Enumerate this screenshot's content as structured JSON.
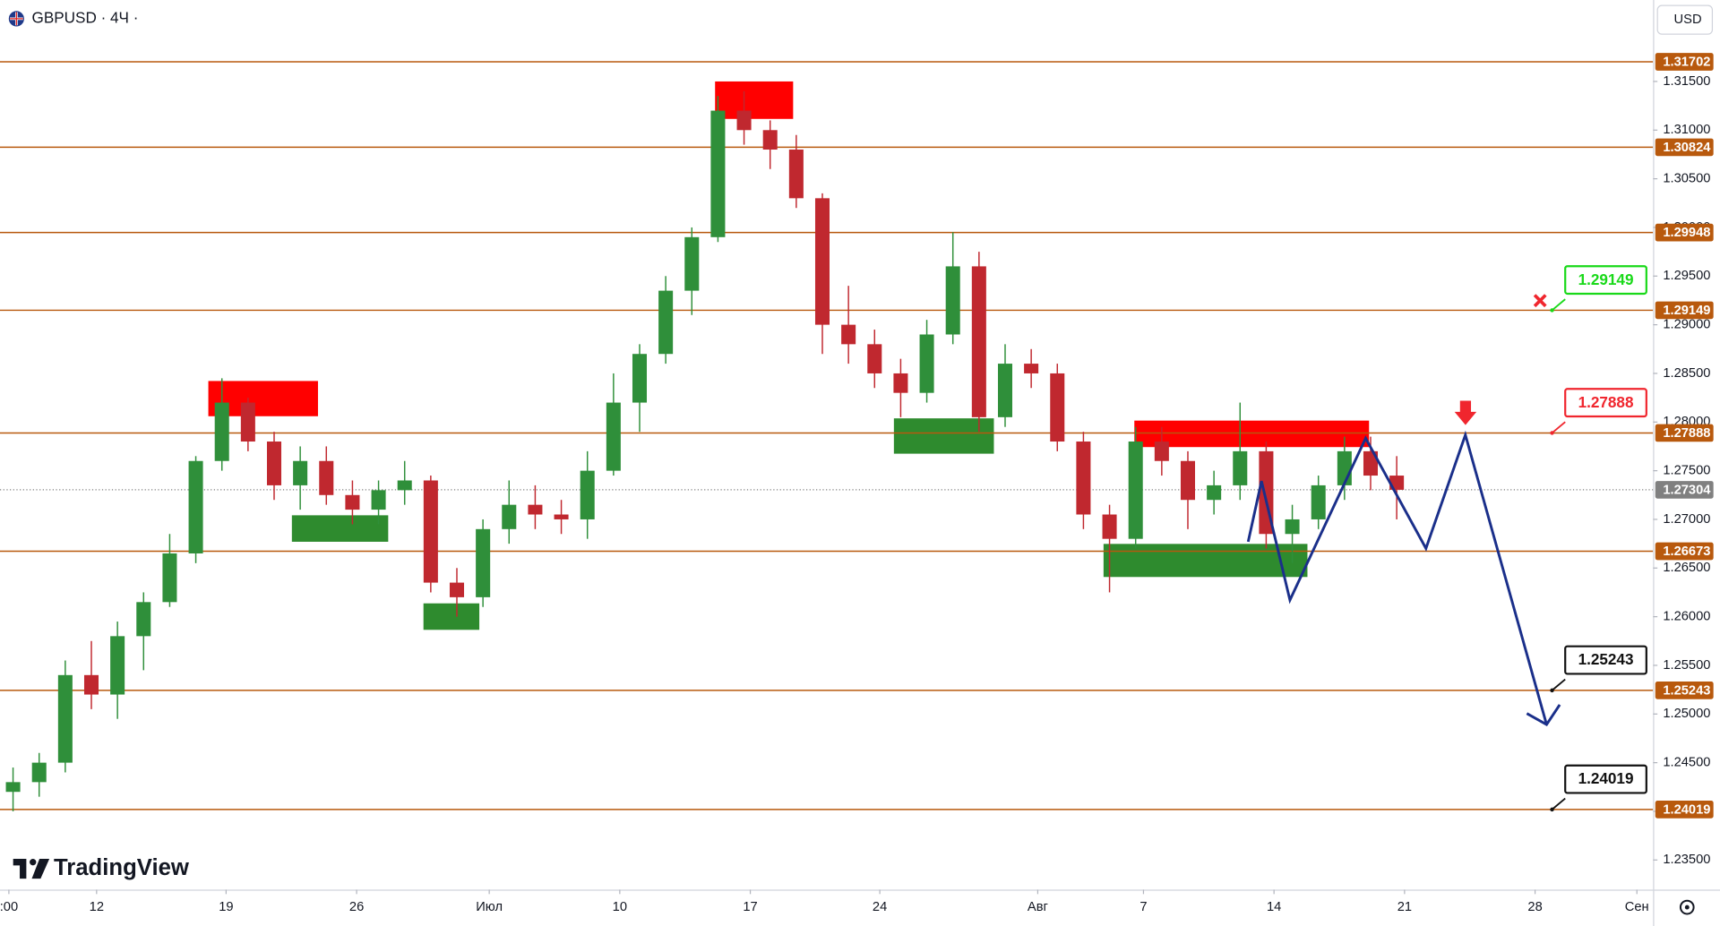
{
  "chart_data": {
    "type": "candlestick",
    "title": "GBPUSD · 4Ч ·",
    "currency": "USD",
    "brand": "TradingView",
    "up_color": "#2f8f3a",
    "down_color": "#c0282f",
    "x": [
      0,
      1,
      2,
      3,
      4,
      5,
      6,
      7,
      8,
      9,
      10,
      11,
      12,
      13,
      14,
      15,
      16,
      17,
      18,
      19,
      20,
      21,
      22,
      23,
      24,
      25,
      26,
      27,
      28,
      29,
      30,
      31,
      32,
      33,
      34,
      35,
      36,
      37,
      38,
      39,
      40,
      41,
      42,
      43,
      44,
      45,
      46,
      47,
      48,
      49,
      50,
      51,
      52,
      53
    ],
    "open": [
      1.242,
      1.243,
      1.245,
      1.254,
      1.252,
      1.258,
      1.2615,
      1.2665,
      1.276,
      1.282,
      1.278,
      1.2735,
      1.276,
      1.2725,
      1.271,
      1.273,
      1.274,
      1.2635,
      1.262,
      1.269,
      1.2715,
      1.2705,
      1.27,
      1.275,
      1.282,
      1.287,
      1.2935,
      1.299,
      1.312,
      1.31,
      1.308,
      1.303,
      1.29,
      1.288,
      1.285,
      1.283,
      1.289,
      1.296,
      1.2805,
      1.286,
      1.285,
      1.278,
      1.2705,
      1.268,
      1.278,
      1.276,
      1.272,
      1.2735,
      1.277,
      1.2685,
      1.27,
      1.2735,
      1.277,
      1.2745
    ],
    "high": [
      1.2445,
      1.246,
      1.2555,
      1.2575,
      1.2595,
      1.2625,
      1.2685,
      1.2765,
      1.2845,
      1.2825,
      1.279,
      1.2775,
      1.2775,
      1.274,
      1.274,
      1.276,
      1.2745,
      1.265,
      1.27,
      1.274,
      1.2735,
      1.272,
      1.277,
      1.285,
      1.288,
      1.295,
      1.3,
      1.3135,
      1.314,
      1.311,
      1.3095,
      1.3035,
      1.294,
      1.2895,
      1.2865,
      1.2905,
      1.2995,
      1.2975,
      1.288,
      1.2875,
      1.286,
      1.279,
      1.2715,
      1.2795,
      1.2795,
      1.277,
      1.275,
      1.282,
      1.278,
      1.2715,
      1.2745,
      1.2785,
      1.2785,
      1.2765
    ],
    "low": [
      1.24,
      1.2415,
      1.244,
      1.2505,
      1.2495,
      1.2545,
      1.261,
      1.2655,
      1.275,
      1.277,
      1.272,
      1.271,
      1.2715,
      1.2695,
      1.2695,
      1.2715,
      1.2625,
      1.26,
      1.261,
      1.2675,
      1.269,
      1.2685,
      1.268,
      1.2745,
      1.279,
      1.286,
      1.291,
      1.2985,
      1.3085,
      1.306,
      1.302,
      1.287,
      1.286,
      1.2835,
      1.2805,
      1.282,
      1.288,
      1.279,
      1.2795,
      1.2835,
      1.277,
      1.269,
      1.2625,
      1.267,
      1.2745,
      1.269,
      1.2705,
      1.272,
      1.267,
      1.2655,
      1.269,
      1.272,
      1.273,
      1.27
    ],
    "close": [
      1.243,
      1.245,
      1.254,
      1.252,
      1.258,
      1.2615,
      1.2665,
      1.276,
      1.282,
      1.278,
      1.2735,
      1.276,
      1.2725,
      1.271,
      1.273,
      1.274,
      1.2635,
      1.262,
      1.269,
      1.2715,
      1.2705,
      1.27,
      1.275,
      1.282,
      1.287,
      1.2935,
      1.299,
      1.312,
      1.31,
      1.308,
      1.303,
      1.29,
      1.288,
      1.285,
      1.283,
      1.289,
      1.296,
      1.2805,
      1.286,
      1.285,
      1.278,
      1.2705,
      1.268,
      1.278,
      1.276,
      1.272,
      1.2735,
      1.277,
      1.2685,
      1.27,
      1.2735,
      1.277,
      1.2745,
      1.27304
    ],
    "xlim": [
      -0.5,
      62.82
    ],
    "xticks": [
      {
        "value": -0.16,
        "label": ":00"
      },
      {
        "value": 3.2,
        "label": "12"
      },
      {
        "value": 8.16,
        "label": "19"
      },
      {
        "value": 13.16,
        "label": "26"
      },
      {
        "value": 18.24,
        "label": "Июл"
      },
      {
        "value": 23.24,
        "label": "10"
      },
      {
        "value": 28.24,
        "label": "17"
      },
      {
        "value": 33.2,
        "label": "24"
      },
      {
        "value": 39.25,
        "label": "Авг"
      },
      {
        "value": 43.3,
        "label": "7"
      },
      {
        "value": 48.3,
        "label": "14"
      },
      {
        "value": 53.3,
        "label": "21"
      },
      {
        "value": 58.3,
        "label": "28"
      },
      {
        "value": 62.2,
        "label": "Сен"
      }
    ],
    "ylim": [
      1.23195,
      1.32337
    ],
    "yticks": [
      {
        "value": 1.235,
        "label": "1.23500"
      },
      {
        "value": 1.24,
        "label": "1.24000"
      },
      {
        "value": 1.245,
        "label": "1.24500"
      },
      {
        "value": 1.25,
        "label": "1.25000"
      },
      {
        "value": 1.255,
        "label": "1.25500"
      },
      {
        "value": 1.26,
        "label": "1.26000"
      },
      {
        "value": 1.265,
        "label": "1.26500"
      },
      {
        "value": 1.27,
        "label": "1.27000"
      },
      {
        "value": 1.275,
        "label": "1.27500"
      },
      {
        "value": 1.28,
        "label": "1.28000"
      },
      {
        "value": 1.285,
        "label": "1.28500"
      },
      {
        "value": 1.29,
        "label": "1.29000"
      },
      {
        "value": 1.295,
        "label": "1.29500"
      },
      {
        "value": 1.3,
        "label": "1.30000"
      },
      {
        "value": 1.305,
        "label": "1.30500"
      },
      {
        "value": 1.31,
        "label": "1.31000"
      },
      {
        "value": 1.315,
        "label": "1.31500"
      }
    ],
    "levels": [
      1.31702,
      1.30824,
      1.29948,
      1.29149,
      1.27888,
      1.26673,
      1.25243,
      1.24019
    ],
    "level_color": "#b8590d",
    "current_price": 1.27304,
    "current_color": "#808080",
    "zones": [
      {
        "x": [
          7.48,
          11.68
        ],
        "y": [
          1.2806,
          1.28422
        ],
        "color": "#ff0000"
      },
      {
        "x": [
          10.68,
          14.37
        ],
        "y": [
          1.2677,
          1.27042
        ],
        "color": "#2e8b2e"
      },
      {
        "x": [
          15.72,
          17.86
        ],
        "y": [
          1.25865,
          1.26137
        ],
        "color": "#2e8b2e"
      },
      {
        "x": [
          26.89,
          29.88
        ],
        "y": [
          1.31115,
          1.315
        ],
        "color": "#ff0000"
      },
      {
        "x": [
          33.74,
          37.57
        ],
        "y": [
          1.27675,
          1.28038
        ],
        "color": "#2e8b2e"
      },
      {
        "x": [
          42.95,
          51.94
        ],
        "y": [
          1.27743,
          1.28015
        ],
        "color": "#ff0000"
      },
      {
        "x": [
          41.77,
          49.58
        ],
        "y": [
          1.26408,
          1.26748
        ],
        "color": "#2e8b2e"
      }
    ],
    "projection": {
      "color": "#1a2f8a",
      "x": [
        47.31,
        47.82,
        48.91,
        51.81,
        54.12,
        55.63,
        58.74
      ],
      "values": [
        1.2677,
        1.27393,
        1.26171,
        1.27834,
        1.26702,
        1.27868,
        1.24892
      ]
    },
    "callouts": [
      {
        "value": 1.29149,
        "color": "#19d919"
      },
      {
        "value": 1.27888,
        "color": "#f0262e"
      },
      {
        "value": 1.25243,
        "color": "#111111"
      },
      {
        "value": 1.24019,
        "color": "#111111"
      }
    ],
    "callout_x": 58.95
  }
}
